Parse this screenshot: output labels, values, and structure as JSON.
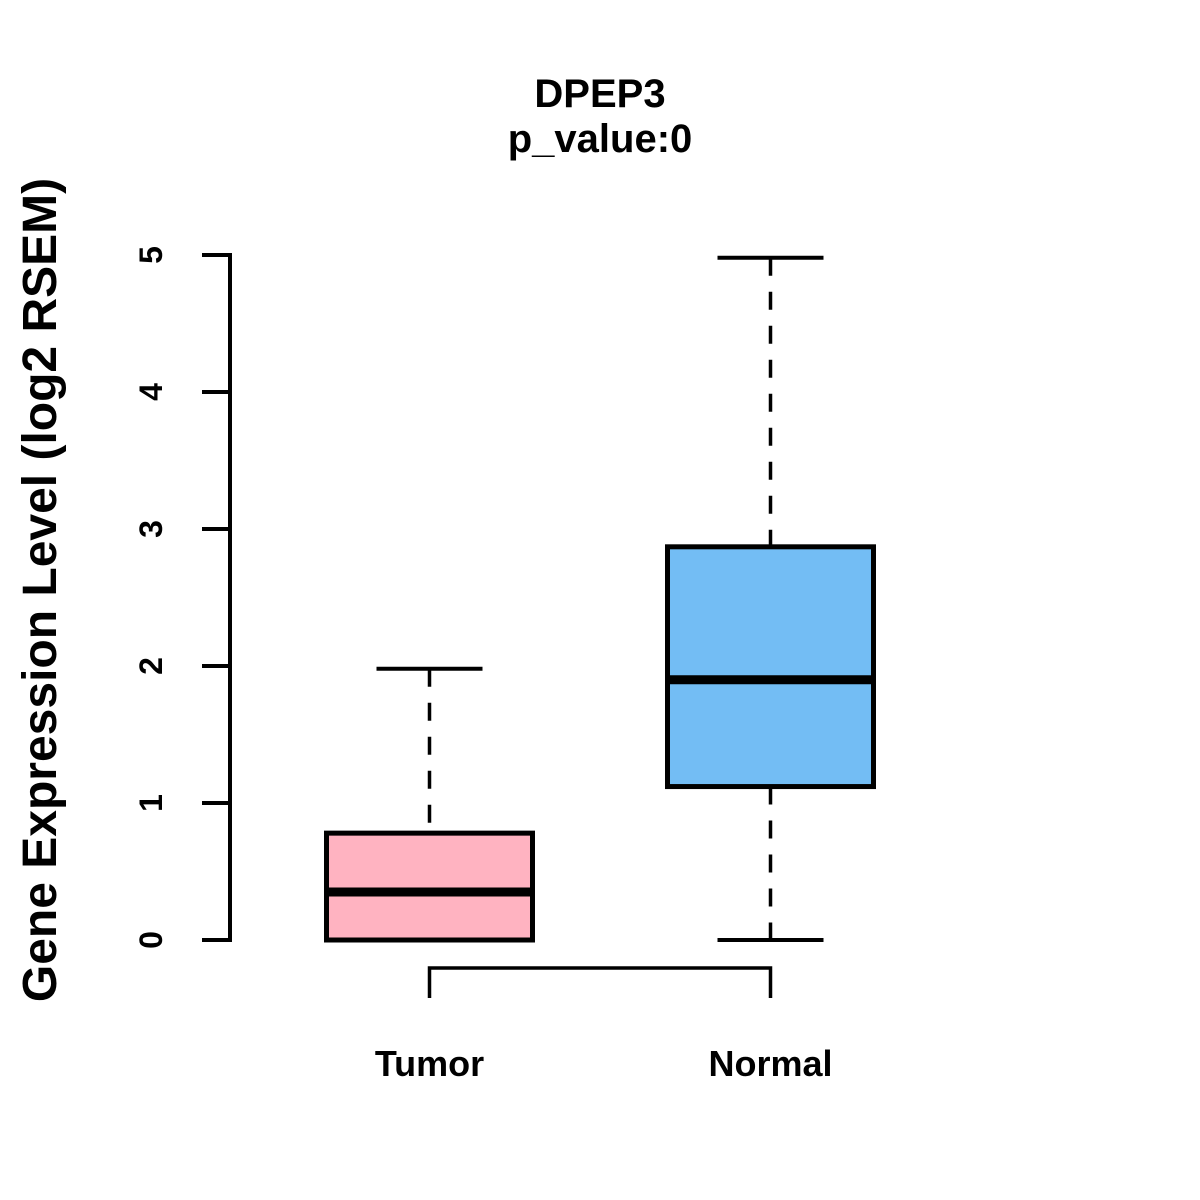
{
  "page": {
    "background": "#ffffff",
    "foreground": "#000000"
  },
  "chart_data": {
    "type": "boxplot",
    "title": "DPEP3",
    "subtitle": "p_value:0",
    "ylabel": "Gene Expression Level (log2 RSEM)",
    "xlabel": "",
    "categories": [
      "Tumor",
      "Normal"
    ],
    "series": [
      {
        "name": "Tumor",
        "min": 0,
        "q1": 0,
        "median": 0.35,
        "q3": 0.78,
        "max": 1.98,
        "color": "#FFB3C1"
      },
      {
        "name": "Normal",
        "min": 0,
        "q1": 1.12,
        "median": 1.9,
        "q3": 2.87,
        "max": 4.98,
        "color": "#73BDF4"
      }
    ],
    "ylim": [
      0,
      5
    ],
    "yticks": [
      0,
      1,
      2,
      3,
      4,
      5
    ],
    "grid": "off",
    "legend": "none",
    "comparison_bracket": {
      "between": [
        "Tumor",
        "Normal"
      ],
      "shown": true
    },
    "stroke_color": "#000000"
  }
}
